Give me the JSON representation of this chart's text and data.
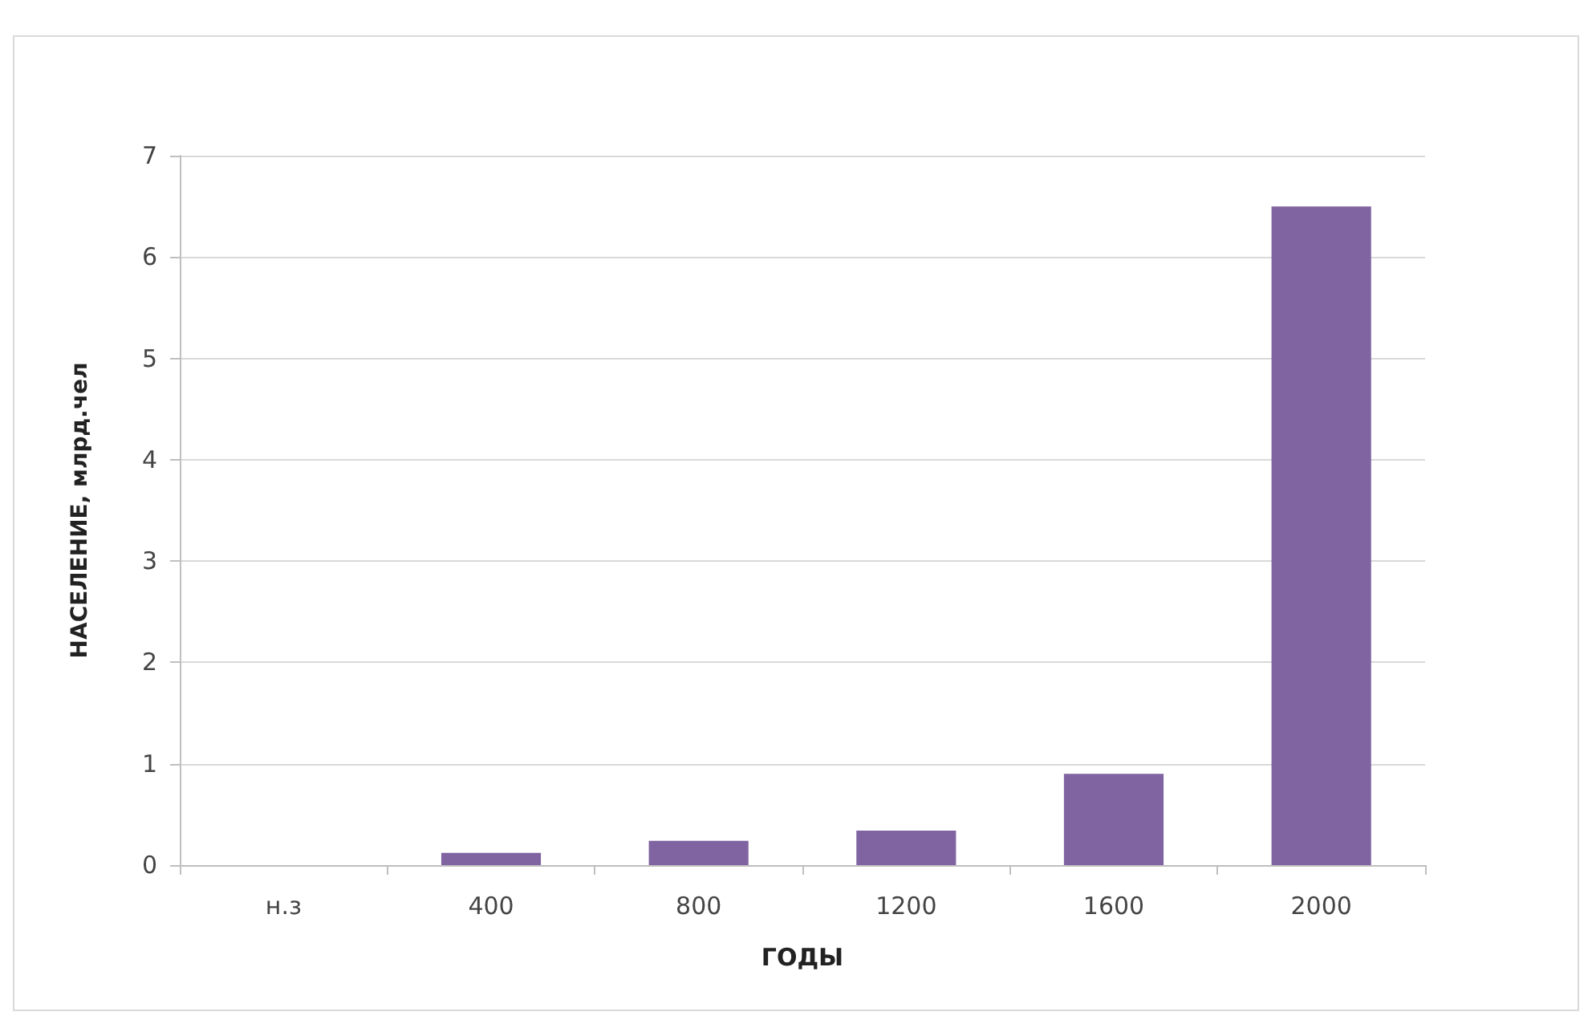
{
  "chart_data": {
    "type": "bar",
    "xlabel": "ГОДЫ",
    "ylabel": "НАСЕЛЕНИЕ, млрд.чел",
    "categories": [
      "н.з",
      "400",
      "800",
      "1200",
      "1600",
      "2000"
    ],
    "values": [
      0,
      0.12,
      0.24,
      0.34,
      0.9,
      6.5
    ],
    "color": "#8064a2",
    "ylim": [
      0,
      7
    ],
    "yticks": [
      0,
      1,
      2,
      3,
      4,
      5,
      6,
      7
    ],
    "grid": "y"
  }
}
